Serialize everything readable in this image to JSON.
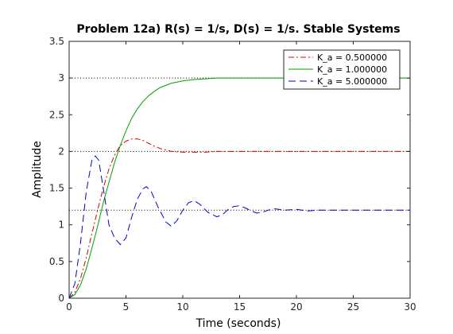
{
  "chart_data": {
    "type": "line",
    "title": "Problem 12a) R(s) = 1/s, D(s) = 1/s. Stable Systems",
    "xlabel": "Time (seconds)",
    "ylabel": "Amplitude",
    "xlim": [
      0,
      30
    ],
    "ylim": [
      0,
      3.5
    ],
    "xticks": [
      0,
      5,
      10,
      15,
      20,
      25,
      30
    ],
    "xtick_labels": [
      "0",
      "5",
      "10",
      "15",
      "20",
      "25",
      "30"
    ],
    "yticks": [
      0,
      0.5,
      1,
      1.5,
      2,
      2.5,
      3,
      3.5
    ],
    "ytick_labels": [
      "0",
      "0.5",
      "1",
      "1.5",
      "2",
      "2.5",
      "3",
      "3.5"
    ],
    "grid": false,
    "legend_position": "top-right",
    "steady_state_lines": [
      3,
      2,
      1.2
    ],
    "series": [
      {
        "name": "K_a = 0.500000",
        "color": "#d40000",
        "style": "dash-dot",
        "x": [
          0,
          0.5,
          1,
          1.5,
          2,
          2.5,
          3,
          3.5,
          4,
          4.5,
          5,
          5.5,
          6,
          6.5,
          7,
          7.5,
          8,
          8.5,
          9,
          10,
          11,
          12,
          13,
          14,
          15,
          17,
          20,
          25,
          30
        ],
        "y": [
          0,
          0.08,
          0.27,
          0.55,
          0.88,
          1.2,
          1.5,
          1.76,
          1.95,
          2.08,
          2.14,
          2.17,
          2.17,
          2.15,
          2.11,
          2.07,
          2.04,
          2.02,
          2.0,
          1.99,
          1.99,
          1.99,
          2.0,
          2.0,
          2.0,
          2.0,
          2.0,
          2.0,
          2.0
        ]
      },
      {
        "name": "K_a = 1.000000",
        "color": "#00a000",
        "style": "solid",
        "x": [
          0,
          0.5,
          1,
          1.5,
          2,
          2.5,
          3,
          3.5,
          4,
          4.5,
          5,
          5.5,
          6,
          6.5,
          7,
          7.5,
          8,
          9,
          10,
          11,
          12,
          13,
          14,
          15,
          16,
          18,
          20,
          25,
          30
        ],
        "y": [
          0,
          0.05,
          0.18,
          0.4,
          0.68,
          0.98,
          1.3,
          1.58,
          1.85,
          2.08,
          2.28,
          2.45,
          2.58,
          2.68,
          2.76,
          2.82,
          2.87,
          2.93,
          2.96,
          2.98,
          2.99,
          3.0,
          3.0,
          3.0,
          3.0,
          3.0,
          3.0,
          3.0,
          3.0
        ]
      },
      {
        "name": "K_a = 5.000000",
        "color": "#0000cc",
        "style": "dashed",
        "x": [
          0,
          0.5,
          1,
          1.5,
          2,
          2.3,
          2.6,
          3,
          3.5,
          4,
          4.5,
          5,
          5.5,
          6,
          6.5,
          6.8,
          7.2,
          7.8,
          8.5,
          9,
          9.5,
          10,
          10.5,
          11,
          11.5,
          12.2,
          13,
          13.5,
          14,
          14.5,
          15,
          15.5,
          16,
          16.5,
          17,
          17.5,
          18,
          19,
          20,
          21,
          22,
          23,
          24,
          25,
          26,
          27,
          28,
          29,
          30
        ],
        "y": [
          0,
          0.2,
          0.75,
          1.45,
          1.88,
          1.94,
          1.88,
          1.5,
          1.0,
          0.82,
          0.73,
          0.82,
          1.1,
          1.35,
          1.49,
          1.52,
          1.46,
          1.25,
          1.04,
          0.98,
          1.06,
          1.2,
          1.3,
          1.33,
          1.28,
          1.17,
          1.11,
          1.14,
          1.21,
          1.25,
          1.26,
          1.23,
          1.19,
          1.16,
          1.17,
          1.2,
          1.22,
          1.2,
          1.21,
          1.19,
          1.2,
          1.2,
          1.2,
          1.2,
          1.2,
          1.2,
          1.2,
          1.2,
          1.2
        ]
      }
    ]
  }
}
